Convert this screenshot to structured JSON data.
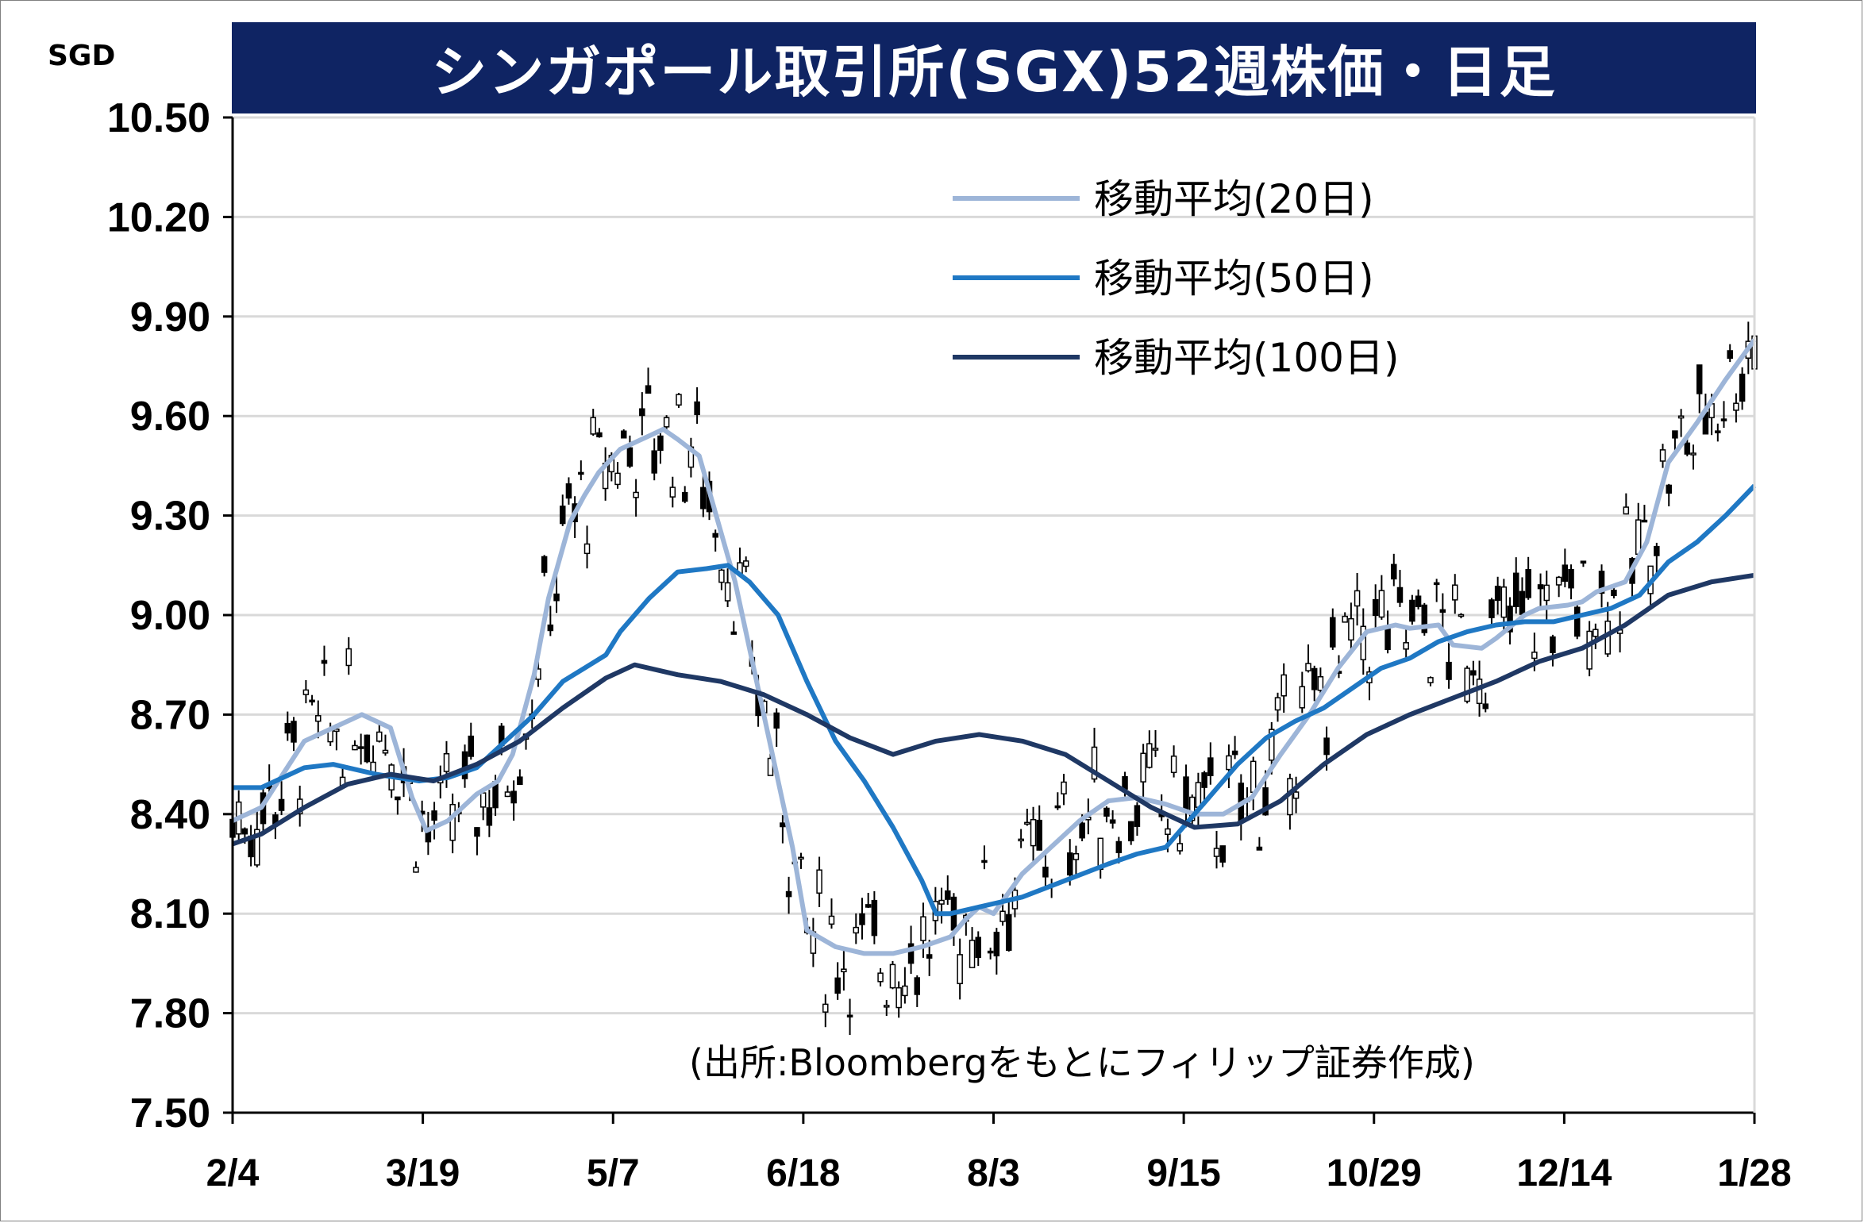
{
  "title": "シンガポール取引所(SGX)52週株価・日足",
  "unit": "SGD",
  "source": "(出所:Bloombergをもとにフィリップ証券作成)",
  "colors": {
    "title_bg": "#0f2463",
    "ma20": "#9db5d8",
    "ma50": "#1f78c4",
    "ma100": "#1f3864",
    "grid": "#d9d9d9"
  },
  "chart_data": {
    "type": "line",
    "ylim": [
      7.5,
      10.5
    ],
    "yticks": [
      "10.50",
      "10.20",
      "9.90",
      "9.60",
      "9.30",
      "9.00",
      "8.70",
      "8.40",
      "8.10",
      "7.80",
      "7.50"
    ],
    "xticks": [
      "2/4",
      "3/19",
      "5/7",
      "6/18",
      "8/3",
      "9/15",
      "10/29",
      "12/14",
      "1/28"
    ],
    "grid": "horizontal",
    "legend_position": "top-right",
    "series": [
      {
        "name": "移動平均(20日)",
        "color_key": "ma20",
        "points": [
          [
            0,
            8.38
          ],
          [
            0.02,
            8.42
          ],
          [
            0.05,
            8.62
          ],
          [
            0.07,
            8.66
          ],
          [
            0.09,
            8.7
          ],
          [
            0.11,
            8.66
          ],
          [
            0.125,
            8.45
          ],
          [
            0.135,
            8.35
          ],
          [
            0.15,
            8.38
          ],
          [
            0.17,
            8.46
          ],
          [
            0.185,
            8.5
          ],
          [
            0.195,
            8.58
          ],
          [
            0.21,
            8.82
          ],
          [
            0.22,
            9.05
          ],
          [
            0.235,
            9.28
          ],
          [
            0.245,
            9.36
          ],
          [
            0.255,
            9.43
          ],
          [
            0.27,
            9.5
          ],
          [
            0.29,
            9.54
          ],
          [
            0.3,
            9.56
          ],
          [
            0.31,
            9.53
          ],
          [
            0.325,
            9.48
          ],
          [
            0.35,
            9.1
          ],
          [
            0.37,
            8.7
          ],
          [
            0.39,
            8.3
          ],
          [
            0.4,
            8.05
          ],
          [
            0.42,
            8.0
          ],
          [
            0.44,
            7.98
          ],
          [
            0.46,
            7.98
          ],
          [
            0.48,
            8.0
          ],
          [
            0.5,
            8.03
          ],
          [
            0.51,
            8.08
          ],
          [
            0.52,
            8.12
          ],
          [
            0.53,
            8.1
          ],
          [
            0.55,
            8.22
          ],
          [
            0.57,
            8.3
          ],
          [
            0.59,
            8.38
          ],
          [
            0.61,
            8.44
          ],
          [
            0.63,
            8.45
          ],
          [
            0.65,
            8.43
          ],
          [
            0.67,
            8.4
          ],
          [
            0.69,
            8.4
          ],
          [
            0.71,
            8.45
          ],
          [
            0.73,
            8.58
          ],
          [
            0.75,
            8.7
          ],
          [
            0.77,
            8.84
          ],
          [
            0.79,
            8.95
          ],
          [
            0.81,
            8.97
          ],
          [
            0.82,
            8.96
          ],
          [
            0.84,
            8.97
          ],
          [
            0.85,
            8.91
          ],
          [
            0.87,
            8.9
          ],
          [
            0.88,
            8.93
          ],
          [
            0.9,
            9.0
          ],
          [
            0.91,
            9.02
          ],
          [
            0.93,
            9.03
          ],
          [
            0.94,
            9.04
          ],
          [
            0.95,
            9.07
          ],
          [
            0.97,
            9.1
          ],
          [
            0.985,
            9.22
          ],
          [
            1.0,
            9.46
          ],
          [
            1.02,
            9.58
          ],
          [
            1.04,
            9.71
          ],
          [
            1.06,
            9.83
          ]
        ]
      },
      {
        "name": "移動平均(50日)",
        "color_key": "ma50",
        "points": [
          [
            0,
            8.48
          ],
          [
            0.02,
            8.48
          ],
          [
            0.05,
            8.54
          ],
          [
            0.07,
            8.55
          ],
          [
            0.1,
            8.52
          ],
          [
            0.13,
            8.5
          ],
          [
            0.15,
            8.51
          ],
          [
            0.17,
            8.54
          ],
          [
            0.19,
            8.62
          ],
          [
            0.21,
            8.7
          ],
          [
            0.23,
            8.8
          ],
          [
            0.245,
            8.84
          ],
          [
            0.26,
            8.88
          ],
          [
            0.27,
            8.95
          ],
          [
            0.29,
            9.05
          ],
          [
            0.31,
            9.13
          ],
          [
            0.33,
            9.14
          ],
          [
            0.345,
            9.15
          ],
          [
            0.36,
            9.1
          ],
          [
            0.38,
            9.0
          ],
          [
            0.4,
            8.8
          ],
          [
            0.42,
            8.62
          ],
          [
            0.44,
            8.5
          ],
          [
            0.46,
            8.36
          ],
          [
            0.48,
            8.2
          ],
          [
            0.49,
            8.1
          ],
          [
            0.5,
            8.1
          ],
          [
            0.52,
            8.12
          ],
          [
            0.55,
            8.15
          ],
          [
            0.58,
            8.2
          ],
          [
            0.61,
            8.25
          ],
          [
            0.63,
            8.28
          ],
          [
            0.65,
            8.3
          ],
          [
            0.66,
            8.35
          ],
          [
            0.68,
            8.45
          ],
          [
            0.7,
            8.55
          ],
          [
            0.72,
            8.63
          ],
          [
            0.74,
            8.68
          ],
          [
            0.76,
            8.72
          ],
          [
            0.78,
            8.78
          ],
          [
            0.8,
            8.84
          ],
          [
            0.82,
            8.87
          ],
          [
            0.84,
            8.92
          ],
          [
            0.86,
            8.95
          ],
          [
            0.88,
            8.97
          ],
          [
            0.9,
            8.98
          ],
          [
            0.92,
            8.98
          ],
          [
            0.94,
            9.0
          ],
          [
            0.96,
            9.02
          ],
          [
            0.98,
            9.06
          ],
          [
            1.0,
            9.16
          ],
          [
            1.02,
            9.22
          ],
          [
            1.04,
            9.3
          ],
          [
            1.06,
            9.39
          ]
        ]
      },
      {
        "name": "移動平均(100日)",
        "color_key": "ma100",
        "points": [
          [
            0,
            8.31
          ],
          [
            0.02,
            8.34
          ],
          [
            0.05,
            8.42
          ],
          [
            0.08,
            8.49
          ],
          [
            0.11,
            8.52
          ],
          [
            0.14,
            8.5
          ],
          [
            0.17,
            8.55
          ],
          [
            0.2,
            8.62
          ],
          [
            0.23,
            8.72
          ],
          [
            0.26,
            8.81
          ],
          [
            0.28,
            8.85
          ],
          [
            0.31,
            8.82
          ],
          [
            0.34,
            8.8
          ],
          [
            0.37,
            8.76
          ],
          [
            0.4,
            8.7
          ],
          [
            0.43,
            8.63
          ],
          [
            0.46,
            8.58
          ],
          [
            0.49,
            8.62
          ],
          [
            0.52,
            8.64
          ],
          [
            0.55,
            8.62
          ],
          [
            0.58,
            8.58
          ],
          [
            0.61,
            8.5
          ],
          [
            0.64,
            8.42
          ],
          [
            0.67,
            8.36
          ],
          [
            0.7,
            8.37
          ],
          [
            0.73,
            8.44
          ],
          [
            0.76,
            8.55
          ],
          [
            0.79,
            8.64
          ],
          [
            0.82,
            8.7
          ],
          [
            0.85,
            8.75
          ],
          [
            0.88,
            8.8
          ],
          [
            0.91,
            8.86
          ],
          [
            0.94,
            8.9
          ],
          [
            0.97,
            8.97
          ],
          [
            1.0,
            9.06
          ],
          [
            1.03,
            9.1
          ],
          [
            1.06,
            9.12
          ]
        ]
      }
    ]
  }
}
